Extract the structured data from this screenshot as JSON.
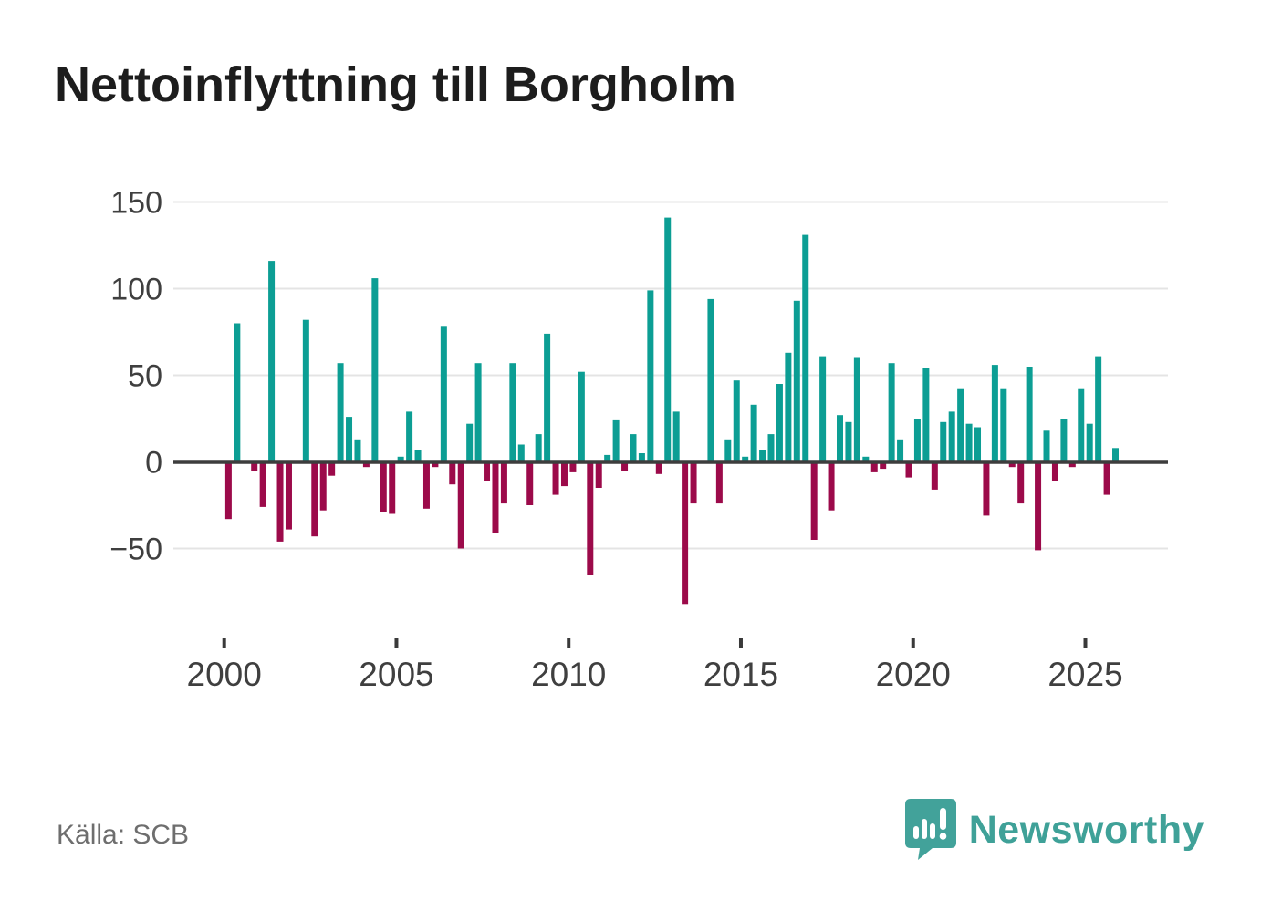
{
  "page": {
    "title": "Nettoinflyttning till Borgholm",
    "source_label": "Källa: SCB",
    "brand": "Newsworthy"
  },
  "colors": {
    "positive": "#0c9e94",
    "negative": "#9c0a4a",
    "brand": "#42a29a",
    "grid": "#e4e4e4",
    "axis_line": "#3d3d3d",
    "tick_mark": "#3a3a3a",
    "text_axis": "#3f3f3f",
    "text_title": "#1d1d1d",
    "text_source": "#6e6e6e"
  },
  "chart_data": {
    "type": "bar",
    "title": "Nettoinflyttning till Borgholm",
    "xlabel": "",
    "ylabel": "",
    "grid": true,
    "ylim": [
      -90,
      160
    ],
    "y_ticks": [
      150,
      100,
      50,
      0,
      -50
    ],
    "y_tick_labels": [
      "150",
      "100",
      "50",
      "0",
      "−50"
    ],
    "x_tick_labels": [
      "2000",
      "2005",
      "2010",
      "2015",
      "2020",
      "2025"
    ],
    "frequency": "quarterly",
    "categories": [
      "2000Q1",
      "2000Q2",
      "2000Q3",
      "2000Q4",
      "2001Q1",
      "2001Q2",
      "2001Q3",
      "2001Q4",
      "2002Q1",
      "2002Q2",
      "2002Q3",
      "2002Q4",
      "2003Q1",
      "2003Q2",
      "2003Q3",
      "2003Q4",
      "2004Q1",
      "2004Q2",
      "2004Q3",
      "2004Q4",
      "2005Q1",
      "2005Q2",
      "2005Q3",
      "2005Q4",
      "2006Q1",
      "2006Q2",
      "2006Q3",
      "2006Q4",
      "2007Q1",
      "2007Q2",
      "2007Q3",
      "2007Q4",
      "2008Q1",
      "2008Q2",
      "2008Q3",
      "2008Q4",
      "2009Q1",
      "2009Q2",
      "2009Q3",
      "2009Q4",
      "2010Q1",
      "2010Q2",
      "2010Q3",
      "2010Q4",
      "2011Q1",
      "2011Q2",
      "2011Q3",
      "2011Q4",
      "2012Q1",
      "2012Q2",
      "2012Q3",
      "2012Q4",
      "2013Q1",
      "2013Q2",
      "2013Q3",
      "2013Q4",
      "2014Q1",
      "2014Q2",
      "2014Q3",
      "2014Q4",
      "2015Q1",
      "2015Q2",
      "2015Q3",
      "2015Q4",
      "2016Q1",
      "2016Q2",
      "2016Q3",
      "2016Q4",
      "2017Q1",
      "2017Q2",
      "2017Q3",
      "2017Q4",
      "2018Q1",
      "2018Q2",
      "2018Q3",
      "2018Q4",
      "2019Q1",
      "2019Q2",
      "2019Q3",
      "2019Q4",
      "2020Q1",
      "2020Q2",
      "2020Q3",
      "2020Q4",
      "2021Q1",
      "2021Q2",
      "2021Q3",
      "2021Q4",
      "2022Q1",
      "2022Q2",
      "2022Q3",
      "2022Q4",
      "2023Q1",
      "2023Q2",
      "2023Q3",
      "2023Q4",
      "2024Q1",
      "2024Q2",
      "2024Q3",
      "2024Q4",
      "2025Q1",
      "2025Q2",
      "2025Q3",
      "2025Q4"
    ],
    "series": [
      {
        "name": "Nettoinflyttning",
        "values": [
          -33,
          80,
          0,
          -5,
          -26,
          116,
          -46,
          -39,
          0,
          82,
          -43,
          -28,
          -8,
          57,
          26,
          13,
          -3,
          106,
          -29,
          -30,
          3,
          29,
          7,
          -27,
          -3,
          78,
          -13,
          -50,
          22,
          57,
          -11,
          -41,
          -24,
          57,
          10,
          -25,
          16,
          74,
          -19,
          -14,
          -6,
          52,
          -65,
          -15,
          4,
          24,
          -5,
          16,
          5,
          99,
          -7,
          141,
          29,
          -82,
          -24,
          0,
          94,
          -24,
          13,
          47,
          3,
          33,
          7,
          16,
          45,
          63,
          93,
          131,
          -45,
          61,
          -28,
          27,
          23,
          60,
          3,
          -6,
          -4,
          57,
          13,
          -9,
          25,
          54,
          -16,
          23,
          29,
          42,
          22,
          20,
          -31,
          56,
          42,
          -3,
          -24,
          55,
          -51,
          18,
          -11,
          25,
          -3,
          42,
          22,
          61,
          -19,
          8
        ]
      }
    ],
    "legend": false
  }
}
